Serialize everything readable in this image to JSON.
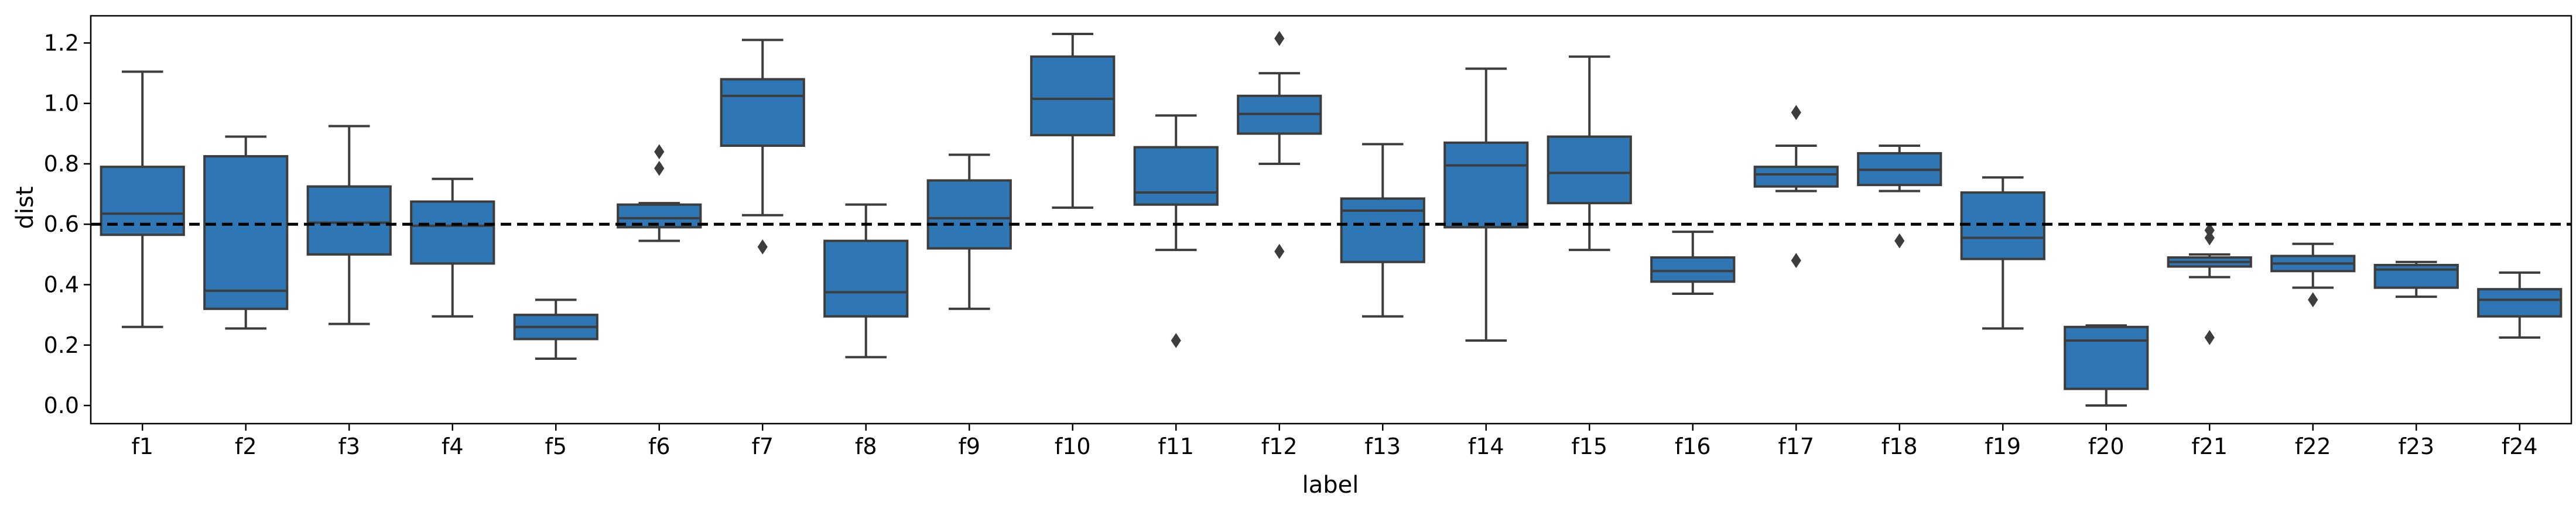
{
  "chart_data": {
    "type": "box",
    "title": "",
    "xlabel": "label",
    "ylabel": "dist",
    "ylim": [
      -0.06,
      1.29
    ],
    "yticks": [
      "0.0",
      "0.2",
      "0.4",
      "0.6",
      "0.8",
      "1.0",
      "1.2"
    ],
    "yticks_values": [
      0.0,
      0.2,
      0.4,
      0.6,
      0.8,
      1.0,
      1.2
    ],
    "reference_line": {
      "y": 0.6,
      "style": "dashed",
      "color": "#000000"
    },
    "box_color": "#2f77b4",
    "line_color": "#3d3d3d",
    "grid": false,
    "categories": [
      "f1",
      "f2",
      "f3",
      "f4",
      "f5",
      "f6",
      "f7",
      "f8",
      "f9",
      "f10",
      "f11",
      "f12",
      "f13",
      "f14",
      "f15",
      "f16",
      "f17",
      "f18",
      "f19",
      "f20",
      "f21",
      "f22",
      "f23",
      "f24"
    ],
    "boxes": [
      {
        "label": "f1",
        "whisker_low": 0.26,
        "q1": 0.565,
        "median": 0.635,
        "q3": 0.79,
        "whisker_high": 1.105,
        "outliers": []
      },
      {
        "label": "f2",
        "whisker_low": 0.255,
        "q1": 0.32,
        "median": 0.38,
        "q3": 0.825,
        "whisker_high": 0.89,
        "outliers": []
      },
      {
        "label": "f3",
        "whisker_low": 0.27,
        "q1": 0.5,
        "median": 0.605,
        "q3": 0.725,
        "whisker_high": 0.925,
        "outliers": []
      },
      {
        "label": "f4",
        "whisker_low": 0.295,
        "q1": 0.47,
        "median": 0.595,
        "q3": 0.675,
        "whisker_high": 0.75,
        "outliers": []
      },
      {
        "label": "f5",
        "whisker_low": 0.155,
        "q1": 0.22,
        "median": 0.26,
        "q3": 0.3,
        "whisker_high": 0.35,
        "outliers": []
      },
      {
        "label": "f6",
        "whisker_low": 0.545,
        "q1": 0.59,
        "median": 0.62,
        "q3": 0.665,
        "whisker_high": 0.67,
        "outliers": [
          0.785,
          0.84
        ]
      },
      {
        "label": "f7",
        "whisker_low": 0.63,
        "q1": 0.86,
        "median": 1.025,
        "q3": 1.08,
        "whisker_high": 1.21,
        "outliers": [
          0.525
        ]
      },
      {
        "label": "f8",
        "whisker_low": 0.16,
        "q1": 0.295,
        "median": 0.375,
        "q3": 0.545,
        "whisker_high": 0.665,
        "outliers": []
      },
      {
        "label": "f9",
        "whisker_low": 0.32,
        "q1": 0.52,
        "median": 0.62,
        "q3": 0.745,
        "whisker_high": 0.83,
        "outliers": []
      },
      {
        "label": "f10",
        "whisker_low": 0.655,
        "q1": 0.895,
        "median": 1.015,
        "q3": 1.155,
        "whisker_high": 1.23,
        "outliers": []
      },
      {
        "label": "f11",
        "whisker_low": 0.515,
        "q1": 0.665,
        "median": 0.705,
        "q3": 0.855,
        "whisker_high": 0.96,
        "outliers": [
          0.215
        ]
      },
      {
        "label": "f12",
        "whisker_low": 0.8,
        "q1": 0.9,
        "median": 0.965,
        "q3": 1.025,
        "whisker_high": 1.1,
        "outliers": [
          1.215,
          0.51
        ]
      },
      {
        "label": "f13",
        "whisker_low": 0.295,
        "q1": 0.475,
        "median": 0.645,
        "q3": 0.685,
        "whisker_high": 0.865,
        "outliers": []
      },
      {
        "label": "f14",
        "whisker_low": 0.215,
        "q1": 0.59,
        "median": 0.795,
        "q3": 0.87,
        "whisker_high": 1.115,
        "outliers": []
      },
      {
        "label": "f15",
        "whisker_low": 0.515,
        "q1": 0.67,
        "median": 0.77,
        "q3": 0.89,
        "whisker_high": 1.155,
        "outliers": []
      },
      {
        "label": "f16",
        "whisker_low": 0.37,
        "q1": 0.41,
        "median": 0.445,
        "q3": 0.49,
        "whisker_high": 0.575,
        "outliers": []
      },
      {
        "label": "f17",
        "whisker_low": 0.71,
        "q1": 0.725,
        "median": 0.765,
        "q3": 0.79,
        "whisker_high": 0.86,
        "outliers": [
          0.97,
          0.48
        ]
      },
      {
        "label": "f18",
        "whisker_low": 0.71,
        "q1": 0.73,
        "median": 0.78,
        "q3": 0.835,
        "whisker_high": 0.86,
        "outliers": [
          0.545
        ]
      },
      {
        "label": "f19",
        "whisker_low": 0.255,
        "q1": 0.485,
        "median": 0.555,
        "q3": 0.705,
        "whisker_high": 0.755,
        "outliers": []
      },
      {
        "label": "f20",
        "whisker_low": 0.0,
        "q1": 0.055,
        "median": 0.215,
        "q3": 0.26,
        "whisker_high": 0.265,
        "outliers": []
      },
      {
        "label": "f21",
        "whisker_low": 0.425,
        "q1": 0.46,
        "median": 0.475,
        "q3": 0.49,
        "whisker_high": 0.5,
        "outliers": [
          0.555,
          0.58,
          0.225
        ]
      },
      {
        "label": "f22",
        "whisker_low": 0.39,
        "q1": 0.445,
        "median": 0.47,
        "q3": 0.495,
        "whisker_high": 0.535,
        "outliers": [
          0.35
        ]
      },
      {
        "label": "f23",
        "whisker_low": 0.36,
        "q1": 0.39,
        "median": 0.45,
        "q3": 0.465,
        "whisker_high": 0.475,
        "outliers": []
      },
      {
        "label": "f24",
        "whisker_low": 0.225,
        "q1": 0.295,
        "median": 0.35,
        "q3": 0.385,
        "whisker_high": 0.44,
        "outliers": []
      }
    ]
  }
}
